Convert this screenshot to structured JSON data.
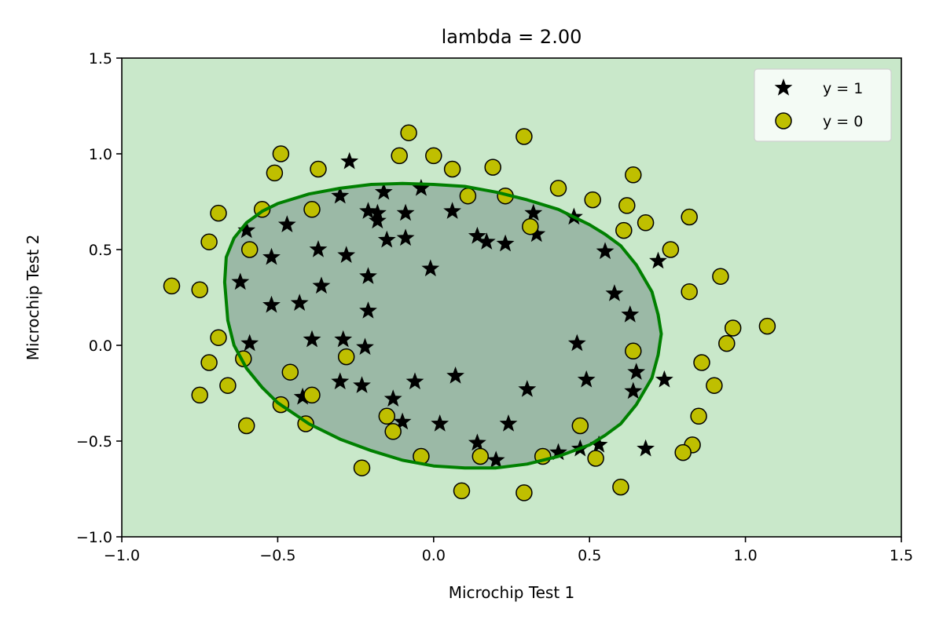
{
  "chart_data": {
    "type": "scatter",
    "title": "lambda = 2.00",
    "xlabel": "Microchip Test 1",
    "ylabel": "Microchip Test 2",
    "xlim": [
      -1.0,
      1.5
    ],
    "ylim": [
      -1.0,
      1.5
    ],
    "xticks": [
      -1.0,
      -0.5,
      0.0,
      0.5,
      1.0,
      1.5
    ],
    "yticks": [
      -1.0,
      -0.5,
      0.0,
      0.5,
      1.0,
      1.5
    ],
    "tick_labels_x": [
      "−1.0",
      "−0.5",
      "0.0",
      "0.5",
      "1.0",
      "1.5"
    ],
    "tick_labels_y": [
      "−1.0",
      "−0.5",
      "0.0",
      "0.5",
      "1.0",
      "1.5"
    ],
    "grid": false,
    "legend_position": "top-right",
    "colors": {
      "background": "#c9e8ca",
      "region_y1": "#9bb9a6",
      "boundary": "#008000",
      "class_1_marker": "#000000",
      "class_0_marker": "#bfbf00"
    },
    "decision_boundary": {
      "x": [
        0.0,
        0.1,
        0.2,
        0.3,
        0.4,
        0.5,
        0.55,
        0.6,
        0.65,
        0.7,
        0.72,
        0.73,
        0.72,
        0.7,
        0.65,
        0.6,
        0.55,
        0.5,
        0.4,
        0.3,
        0.2,
        0.1,
        0.0,
        -0.1,
        -0.2,
        -0.3,
        -0.4,
        -0.5,
        -0.55,
        -0.6,
        -0.64,
        -0.66,
        -0.67,
        -0.665,
        -0.64,
        -0.6,
        -0.55,
        -0.5,
        -0.4,
        -0.3,
        -0.2,
        -0.1,
        0.0
      ],
      "y": [
        0.84,
        0.83,
        0.8,
        0.76,
        0.71,
        0.63,
        0.58,
        0.52,
        0.42,
        0.28,
        0.16,
        0.06,
        -0.05,
        -0.17,
        -0.31,
        -0.41,
        -0.47,
        -0.52,
        -0.58,
        -0.62,
        -0.64,
        -0.64,
        -0.63,
        -0.6,
        -0.55,
        -0.49,
        -0.41,
        -0.3,
        -0.22,
        -0.12,
        0.0,
        0.13,
        0.33,
        0.46,
        0.56,
        0.64,
        0.7,
        0.74,
        0.79,
        0.82,
        0.84,
        0.845,
        0.84
      ]
    },
    "series": [
      {
        "name": "y = 1",
        "marker": "star",
        "points": [
          [
            -0.27,
            0.96
          ],
          [
            -0.3,
            0.78
          ],
          [
            -0.16,
            0.8
          ],
          [
            -0.04,
            0.82
          ],
          [
            -0.21,
            0.7
          ],
          [
            -0.18,
            0.69
          ],
          [
            -0.09,
            0.69
          ],
          [
            -0.18,
            0.65
          ],
          [
            0.06,
            0.7
          ],
          [
            -0.6,
            0.6
          ],
          [
            -0.47,
            0.63
          ],
          [
            -0.15,
            0.55
          ],
          [
            -0.09,
            0.56
          ],
          [
            -0.37,
            0.5
          ],
          [
            -0.52,
            0.46
          ],
          [
            -0.28,
            0.47
          ],
          [
            0.14,
            0.57
          ],
          [
            0.17,
            0.54
          ],
          [
            0.23,
            0.53
          ],
          [
            0.32,
            0.69
          ],
          [
            0.33,
            0.58
          ],
          [
            0.45,
            0.67
          ],
          [
            0.55,
            0.49
          ],
          [
            -0.01,
            0.4
          ],
          [
            -0.21,
            0.36
          ],
          [
            -0.62,
            0.33
          ],
          [
            -0.36,
            0.31
          ],
          [
            -0.52,
            0.21
          ],
          [
            -0.43,
            0.22
          ],
          [
            -0.21,
            0.18
          ],
          [
            0.58,
            0.27
          ],
          [
            0.63,
            0.16
          ],
          [
            0.72,
            0.44
          ],
          [
            -0.59,
            0.01
          ],
          [
            -0.39,
            0.03
          ],
          [
            -0.29,
            0.03
          ],
          [
            -0.22,
            -0.01
          ],
          [
            0.46,
            0.01
          ],
          [
            0.65,
            -0.14
          ],
          [
            0.49,
            -0.18
          ],
          [
            0.64,
            -0.24
          ],
          [
            0.74,
            -0.18
          ],
          [
            -0.3,
            -0.19
          ],
          [
            -0.23,
            -0.21
          ],
          [
            -0.06,
            -0.19
          ],
          [
            0.07,
            -0.16
          ],
          [
            0.3,
            -0.23
          ],
          [
            -0.42,
            -0.27
          ],
          [
            -0.13,
            -0.28
          ],
          [
            -0.1,
            -0.4
          ],
          [
            0.02,
            -0.41
          ],
          [
            0.24,
            -0.41
          ],
          [
            0.14,
            -0.51
          ],
          [
            0.2,
            -0.6
          ],
          [
            0.4,
            -0.56
          ],
          [
            0.47,
            -0.54
          ],
          [
            0.53,
            -0.52
          ],
          [
            0.68,
            -0.54
          ]
        ]
      },
      {
        "name": "y = 0",
        "marker": "circle",
        "points": [
          [
            -0.49,
            1.0
          ],
          [
            -0.11,
            0.99
          ],
          [
            -0.08,
            1.11
          ],
          [
            0.0,
            0.99
          ],
          [
            0.06,
            0.92
          ],
          [
            0.19,
            0.93
          ],
          [
            0.29,
            1.09
          ],
          [
            -0.51,
            0.9
          ],
          [
            -0.37,
            0.92
          ],
          [
            0.64,
            0.89
          ],
          [
            0.23,
            0.78
          ],
          [
            0.11,
            0.78
          ],
          [
            0.4,
            0.82
          ],
          [
            0.51,
            0.76
          ],
          [
            0.62,
            0.73
          ],
          [
            -0.55,
            0.71
          ],
          [
            -0.39,
            0.71
          ],
          [
            -0.69,
            0.69
          ],
          [
            0.82,
            0.67
          ],
          [
            0.68,
            0.64
          ],
          [
            0.61,
            0.6
          ],
          [
            0.31,
            0.62
          ],
          [
            0.76,
            0.5
          ],
          [
            -0.72,
            0.54
          ],
          [
            -0.59,
            0.5
          ],
          [
            -0.84,
            0.31
          ],
          [
            -0.75,
            0.29
          ],
          [
            0.82,
            0.28
          ],
          [
            0.92,
            0.36
          ],
          [
            0.96,
            0.09
          ],
          [
            1.07,
            0.1
          ],
          [
            -0.69,
            0.04
          ],
          [
            -0.72,
            -0.09
          ],
          [
            -0.61,
            -0.07
          ],
          [
            -0.46,
            -0.14
          ],
          [
            -0.28,
            -0.06
          ],
          [
            0.64,
            -0.03
          ],
          [
            0.94,
            0.01
          ],
          [
            0.86,
            -0.09
          ],
          [
            -0.75,
            -0.26
          ],
          [
            -0.66,
            -0.21
          ],
          [
            -0.49,
            -0.31
          ],
          [
            -0.39,
            -0.26
          ],
          [
            0.9,
            -0.21
          ],
          [
            -0.6,
            -0.42
          ],
          [
            -0.41,
            -0.41
          ],
          [
            -0.15,
            -0.37
          ],
          [
            -0.13,
            -0.45
          ],
          [
            0.47,
            -0.42
          ],
          [
            0.85,
            -0.37
          ],
          [
            -0.04,
            -0.58
          ],
          [
            0.15,
            -0.58
          ],
          [
            0.35,
            -0.58
          ],
          [
            0.52,
            -0.59
          ],
          [
            0.83,
            -0.52
          ],
          [
            0.8,
            -0.56
          ],
          [
            -0.23,
            -0.64
          ],
          [
            0.09,
            -0.76
          ],
          [
            0.29,
            -0.77
          ],
          [
            0.6,
            -0.74
          ]
        ]
      }
    ]
  }
}
